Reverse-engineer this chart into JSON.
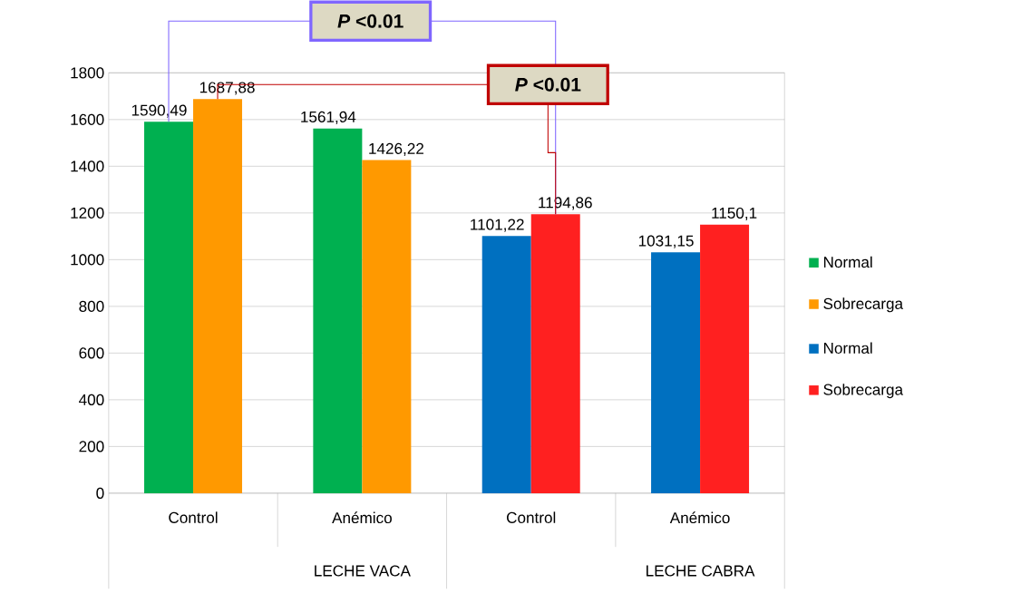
{
  "chart_data": {
    "type": "bar",
    "categories": [
      "Control",
      "Anémico",
      "Control",
      "Anémico"
    ],
    "series": [
      {
        "name": "Normal",
        "color": "#00b050",
        "values": [
          1590.49,
          1561.94,
          null,
          null
        ],
        "value_labels": [
          "1590,49",
          "1561,94",
          null,
          null
        ]
      },
      {
        "name": "Sobrecarga",
        "color": "#ff9900",
        "values": [
          1687.88,
          1426.22,
          null,
          null
        ],
        "value_labels": [
          "1687,88",
          "1426,22",
          null,
          null
        ]
      },
      {
        "name": "Normal",
        "color": "#0070c0",
        "values": [
          null,
          null,
          1101.22,
          1031.15
        ],
        "value_labels": [
          null,
          null,
          "1101,22",
          "1031,15"
        ]
      },
      {
        "name": "Sobrecarga",
        "color": "#ff2020",
        "values": [
          null,
          null,
          1194.86,
          1150.1
        ],
        "value_labels": [
          null,
          null,
          "1194,86",
          "1150,1"
        ]
      }
    ],
    "ylim": [
      0,
      1800
    ],
    "yticks": [
      0,
      200,
      400,
      600,
      800,
      1000,
      1200,
      1400,
      1600,
      1800
    ],
    "grid": "y",
    "legend": "right",
    "annotations": [
      "LECHE VACA",
      "LECHE CABRA",
      "*P* <0.01",
      "*P* <0.01"
    ]
  }
}
